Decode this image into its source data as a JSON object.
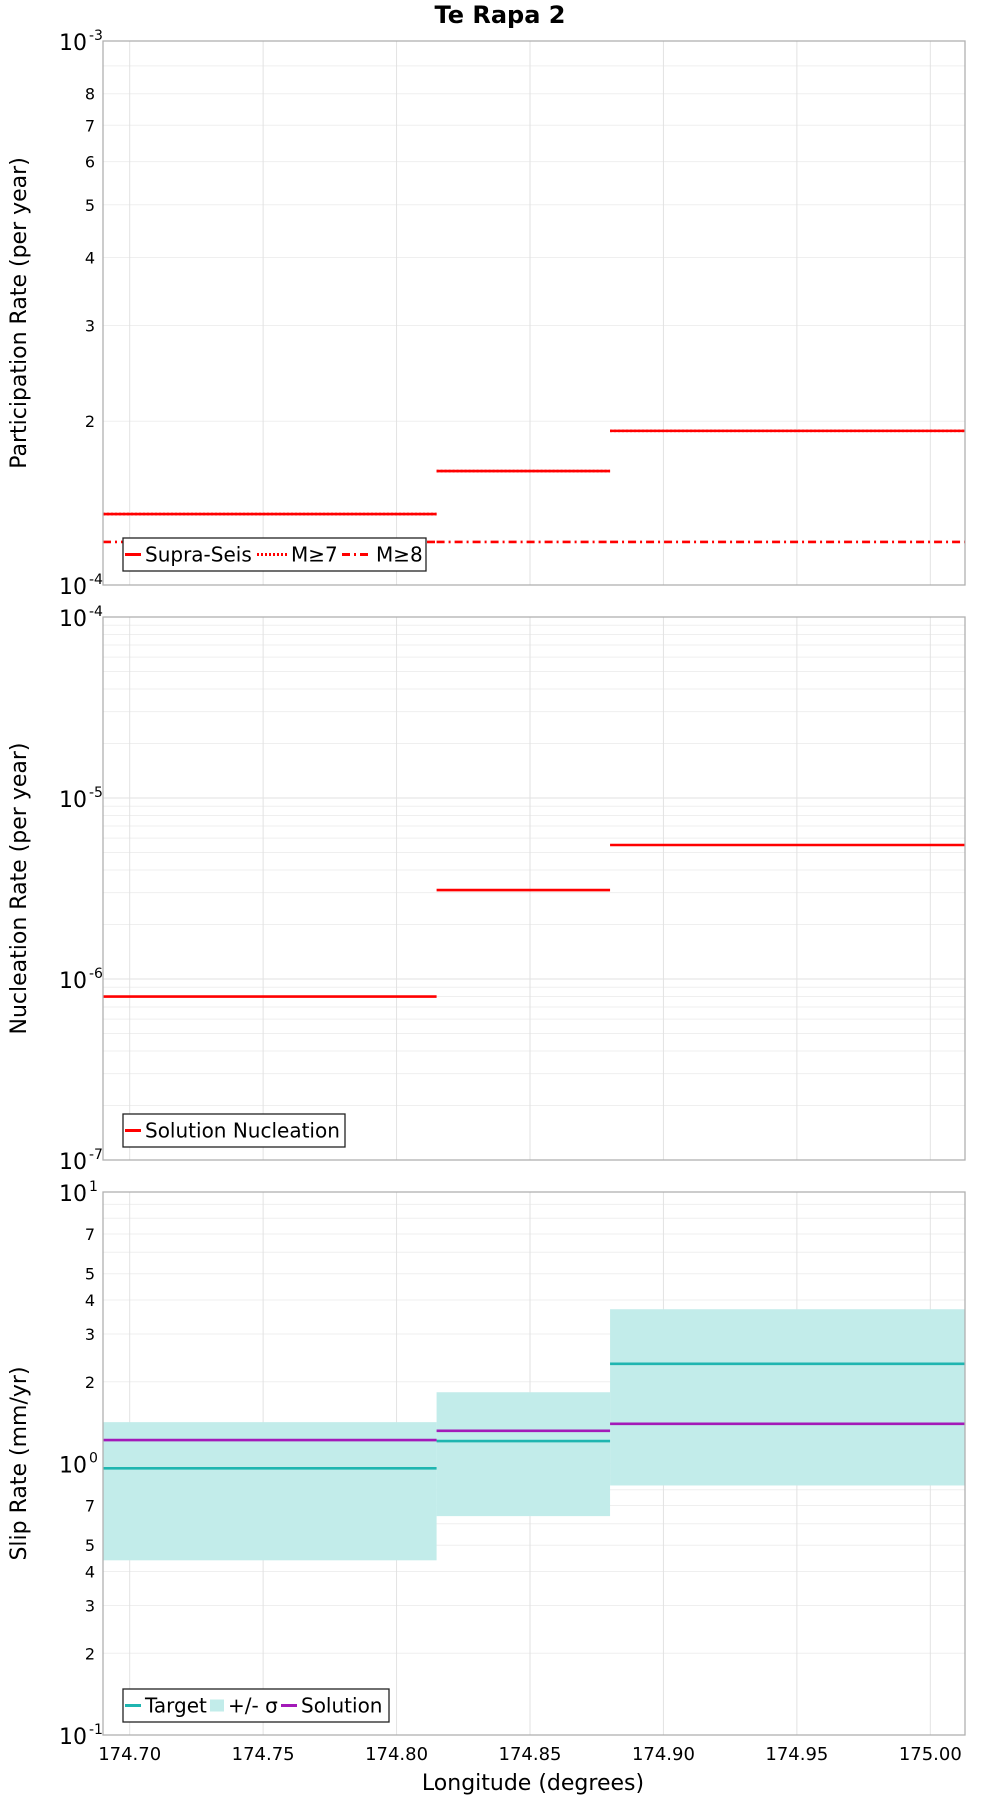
{
  "title": "Te Rapa 2",
  "xlabel": "Longitude (degrees)",
  "xlim": [
    174.69,
    175.013
  ],
  "xticks": [
    174.7,
    174.75,
    174.8,
    174.85,
    174.9,
    174.95,
    175.0
  ],
  "xtick_labels": [
    "174.70",
    "174.75",
    "174.80",
    "174.85",
    "174.90",
    "174.95",
    "175.00"
  ],
  "segment_edges": [
    174.69,
    174.815,
    174.88,
    175.013
  ],
  "chart_data": [
    {
      "type": "line",
      "name": "participation",
      "ylabel": "Participation Rate (per year)",
      "yscale": "log",
      "ylim": [
        0.0001,
        0.001
      ],
      "major_ticks": [
        {
          "base": "10",
          "exp": "-4",
          "value": 0.0001
        },
        {
          "base": "10",
          "exp": "-3",
          "value": 0.001
        }
      ],
      "minor_ticks": [
        {
          "value": 0.0002,
          "label": "2"
        },
        {
          "value": 0.0003,
          "label": "3"
        },
        {
          "value": 0.0004,
          "label": "4"
        },
        {
          "value": 0.0005,
          "label": "5"
        },
        {
          "value": 0.0006,
          "label": "6"
        },
        {
          "value": 0.0007,
          "label": "7"
        },
        {
          "value": 0.0008,
          "label": "8"
        }
      ],
      "series": [
        {
          "name": "Supra-Seis",
          "color": "#ff0000",
          "style": "solid",
          "values": [
            0.000135,
            0.000162,
            0.000192
          ]
        },
        {
          "name": "M≥7",
          "color": "#ff0000",
          "style": "dotted",
          "values": [
            0.000135,
            0.000162,
            0.000192
          ]
        },
        {
          "name": "M≥8",
          "color": "#ff0000",
          "style": "dashdot",
          "values": [
            0.00012,
            0.00012,
            0.00012
          ]
        }
      ],
      "legend": {
        "position": "bottom-left",
        "entries": [
          "Supra-Seis",
          "M≥7",
          "M≥8"
        ]
      }
    },
    {
      "type": "line",
      "name": "nucleation",
      "ylabel": "Nucleation Rate (per year)",
      "yscale": "log",
      "ylim": [
        1e-07,
        0.0001
      ],
      "major_ticks": [
        {
          "base": "10",
          "exp": "-7",
          "value": 1e-07
        },
        {
          "base": "10",
          "exp": "-6",
          "value": 1e-06
        },
        {
          "base": "10",
          "exp": "-5",
          "value": 1e-05
        },
        {
          "base": "10",
          "exp": "-4",
          "value": 0.0001
        }
      ],
      "minor_ticks": [],
      "series": [
        {
          "name": "Solution Nucleation",
          "color": "#ff0000",
          "style": "solid",
          "values": [
            8e-07,
            3.1e-06,
            5.5e-06
          ]
        }
      ],
      "legend": {
        "position": "bottom-left",
        "entries": [
          "Solution Nucleation"
        ]
      }
    },
    {
      "type": "area",
      "name": "slip",
      "ylabel": "Slip Rate (mm/yr)",
      "yscale": "log",
      "ylim": [
        0.1,
        10
      ],
      "major_ticks": [
        {
          "base": "10",
          "exp": "-1",
          "value": 0.1
        },
        {
          "base": "10",
          "exp": "0",
          "value": 1
        },
        {
          "base": "10",
          "exp": "1",
          "value": 10
        }
      ],
      "minor_ticks": [
        {
          "value": 0.2,
          "label": "2"
        },
        {
          "value": 0.3,
          "label": "3"
        },
        {
          "value": 0.4,
          "label": "4"
        },
        {
          "value": 0.5,
          "label": "5"
        },
        {
          "value": 0.7,
          "label": "7"
        },
        {
          "value": 2,
          "label": "2"
        },
        {
          "value": 3,
          "label": "3"
        },
        {
          "value": 4,
          "label": "4"
        },
        {
          "value": 5,
          "label": "5"
        },
        {
          "value": 7,
          "label": "7"
        }
      ],
      "band": {
        "name": "+/- σ",
        "color": "#c2ecea",
        "lower": [
          0.44,
          0.64,
          0.83
        ],
        "upper": [
          1.42,
          1.83,
          3.7
        ]
      },
      "series": [
        {
          "name": "Target",
          "color": "#1fb5b0",
          "style": "solid",
          "values": [
            0.96,
            1.21,
            2.33
          ]
        },
        {
          "name": "Solution",
          "color": "#a31ab8",
          "style": "solid",
          "values": [
            1.22,
            1.32,
            1.4
          ]
        }
      ],
      "legend": {
        "position": "bottom-left",
        "entries": [
          "Target",
          "+/- σ",
          "Solution"
        ]
      }
    }
  ]
}
